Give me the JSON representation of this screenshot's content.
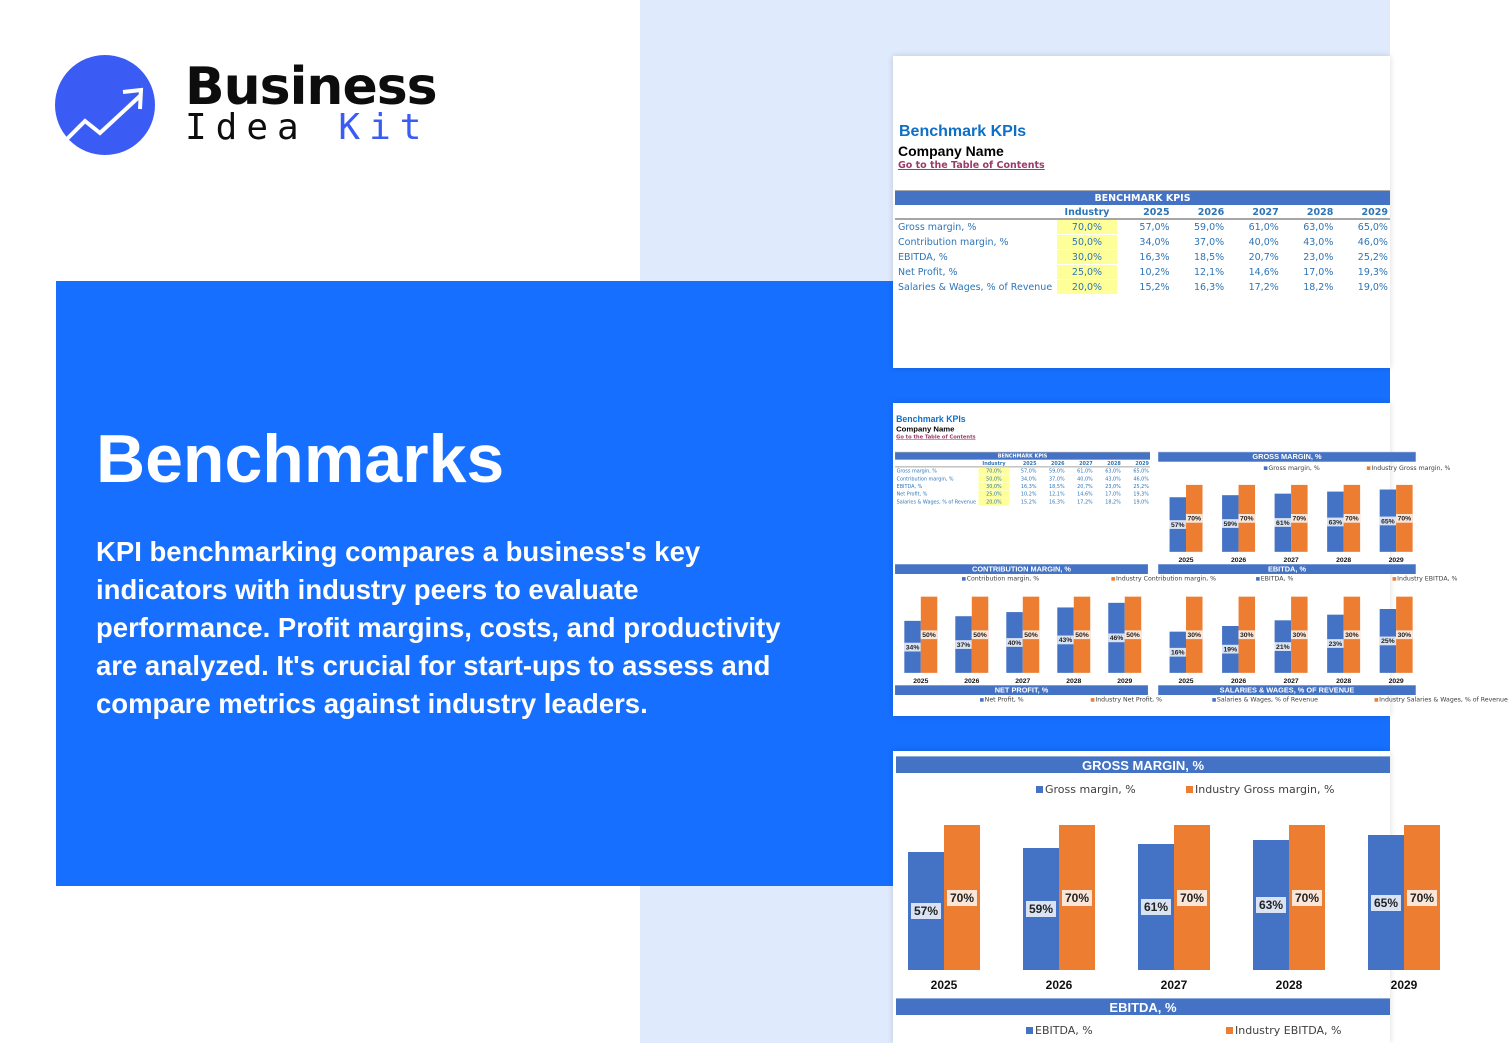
{
  "brand": {
    "word1": "Business",
    "word2a": "Idea",
    "word2b": "Kit"
  },
  "hero": {
    "title": "Benchmarks",
    "description": "KPI benchmarking compares a business's key indicators with industry peers to evaluate performance. Profit margins, costs, and productivity are analyzed. It's crucial for start-ups to assess and compare metrics against industry leaders."
  },
  "sheet": {
    "title": "Benchmark KPIs",
    "company": "Company Name",
    "toc_link": "Go to the Table of Contents",
    "table": {
      "header": "BENCHMARK KPIS",
      "columns": [
        "Industry",
        "2025",
        "2026",
        "2027",
        "2028",
        "2029"
      ],
      "rows": [
        {
          "label": "Gross margin, %",
          "values": [
            "70,0%",
            "57,0%",
            "59,0%",
            "61,0%",
            "63,0%",
            "65,0%"
          ]
        },
        {
          "label": "Contribution margin, %",
          "values": [
            "50,0%",
            "34,0%",
            "37,0%",
            "40,0%",
            "43,0%",
            "46,0%"
          ]
        },
        {
          "label": "EBITDA, %",
          "values": [
            "30,0%",
            "16,3%",
            "18,5%",
            "20,7%",
            "23,0%",
            "25,2%"
          ]
        },
        {
          "label": "Net Profit, %",
          "values": [
            "25,0%",
            "10,2%",
            "12,1%",
            "14,6%",
            "17,0%",
            "19,3%"
          ]
        },
        {
          "label": "Salaries & Wages, % of Revenue",
          "values": [
            "20,0%",
            "15,2%",
            "16,3%",
            "17,2%",
            "18,2%",
            "19,0%"
          ]
        }
      ]
    }
  },
  "colors": {
    "brand_blue": "#3a5cf5",
    "hero_blue": "#166ffe",
    "header_blue": "#4472c4",
    "series_company": "#4472c4",
    "series_industry": "#ed7d31",
    "industry_cell": "#ffff99"
  },
  "chart_data": [
    {
      "type": "bar",
      "title": "GROSS MARGIN, %",
      "categories": [
        "2025",
        "2026",
        "2027",
        "2028",
        "2029"
      ],
      "series": [
        {
          "name": "Gross margin, %",
          "values": [
            57,
            59,
            61,
            63,
            65
          ]
        },
        {
          "name": "Industry Gross margin, %",
          "values": [
            70,
            70,
            70,
            70,
            70
          ]
        }
      ]
    },
    {
      "type": "bar",
      "title": "CONTRIBUTION MARGIN, %",
      "categories": [
        "2025",
        "2026",
        "2027",
        "2028",
        "2029"
      ],
      "series": [
        {
          "name": "Contribution margin, %",
          "values": [
            34,
            37,
            40,
            43,
            46
          ]
        },
        {
          "name": "Industry Contribution margin, %",
          "values": [
            50,
            50,
            50,
            50,
            50
          ]
        }
      ]
    },
    {
      "type": "bar",
      "title": "EBITDA, %",
      "categories": [
        "2025",
        "2026",
        "2027",
        "2028",
        "2029"
      ],
      "series": [
        {
          "name": "EBITDA, %",
          "values": [
            16.3,
            18.5,
            20.7,
            23.0,
            25.2
          ]
        },
        {
          "name": "Industry EBITDA, %",
          "values": [
            30,
            30,
            30,
            30,
            30
          ]
        }
      ]
    },
    {
      "type": "bar",
      "title": "NET PROFIT, %",
      "series": [
        {
          "name": "Net Profit, %"
        },
        {
          "name": "Industry Net Profit, %"
        }
      ]
    },
    {
      "type": "bar",
      "title": "SALARIES & WAGES, % OF REVENUE",
      "series": [
        {
          "name": "Salaries & Wages, % of Revenue"
        },
        {
          "name": "Industry Salaries & Wages, % of Revenue"
        }
      ]
    }
  ]
}
